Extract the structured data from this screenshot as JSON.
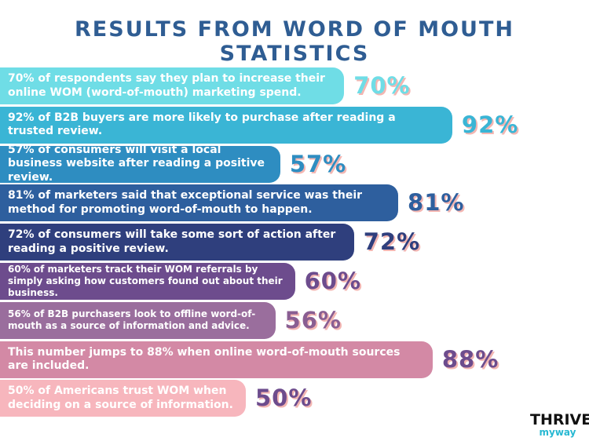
{
  "title": "RESULTS FROM WORD OF MOUTH STATISTICS",
  "logo": {
    "top": "THRIVE",
    "bottom": "myway"
  },
  "chart_data": {
    "type": "bar",
    "orientation": "horizontal",
    "title": "RESULTS FROM WORD OF MOUTH STATISTICS",
    "categories": [
      "70% of respondents say they plan to increase their online WOM (word-of-mouth) marketing spend.",
      "92% of B2B buyers are more likely to purchase after reading a trusted review.",
      "57% of consumers will visit a local business website after reading a positive review.",
      "81% of marketers said that exceptional service was their method for promoting word-of-mouth to happen.",
      "72% of consumers will take some sort of action after reading a positive review.",
      "60% of marketers track their WOM referrals by simply asking how customers found out about their business.",
      "56% of B2B purchasers look to offline word-of-mouth as a source of information and advice.",
      "This number jumps to 88% when online word-of-mouth sources are included.",
      "50% of Americans trust WOM when deciding on a source of information."
    ],
    "values": [
      70,
      92,
      57,
      81,
      72,
      60,
      56,
      88,
      50
    ],
    "labels": [
      "70%",
      "92%",
      "57%",
      "81%",
      "72%",
      "60%",
      "56%",
      "88%",
      "50%"
    ],
    "bar_colors": [
      "#6fdde6",
      "#3ab5d5",
      "#2e8dc1",
      "#2e5f9e",
      "#2f3f7d",
      "#6d4c8d",
      "#9a6e9d",
      "#d389a5",
      "#f7b6bd"
    ],
    "label_colors": [
      "#6fdde6",
      "#3ab5d5",
      "#2e8dc1",
      "#2e5f9e",
      "#2f3f7d",
      "#6d4c8d",
      "#8a5e92",
      "#6d4c8d",
      "#6d4c8d"
    ],
    "grid": false,
    "legend": "none"
  }
}
